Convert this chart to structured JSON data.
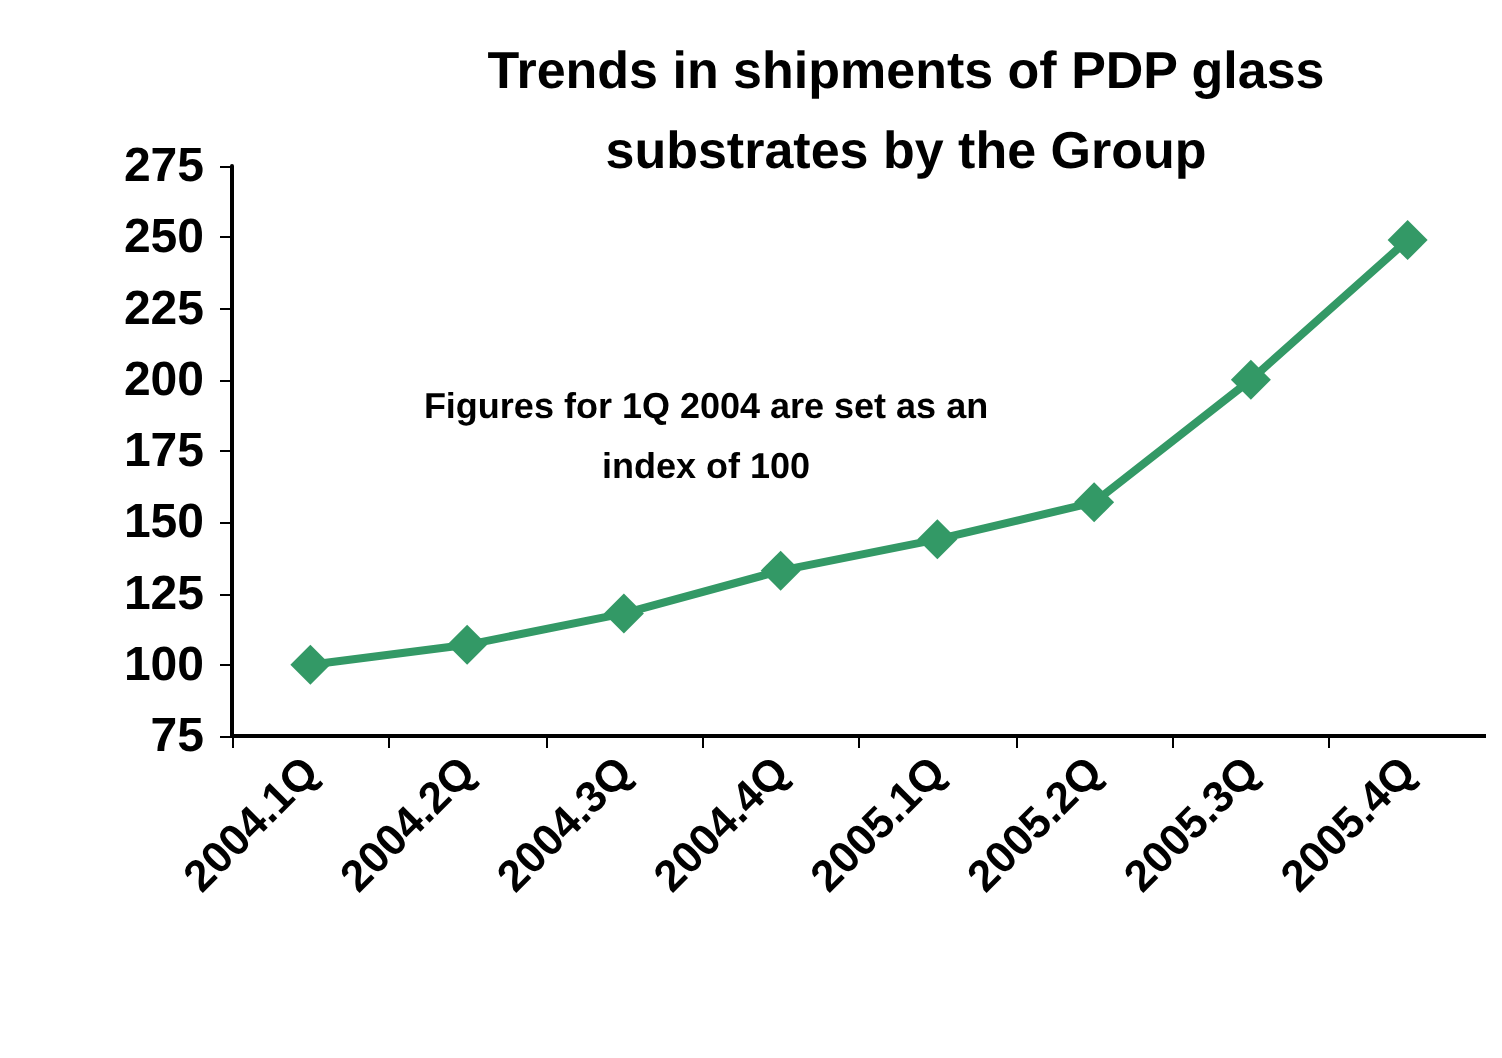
{
  "chart_data": {
    "type": "line",
    "title": "Trends in shipments of PDP glass\nsubstrates by the Group",
    "annotations": [
      "Figures for 1Q 2004 are set as an\nindex of 100"
    ],
    "categories": [
      "2004.1Q",
      "2004.2Q",
      "2004.3Q",
      "2004.4Q",
      "2005.1Q",
      "2005.2Q",
      "2005.3Q",
      "2005.4Q"
    ],
    "series": [
      {
        "color": "#339966",
        "values": [
          100,
          107,
          118,
          133,
          144,
          157,
          200,
          249
        ]
      }
    ],
    "ylim": [
      75,
      275
    ],
    "yticks": [
      75,
      100,
      125,
      150,
      175,
      200,
      225,
      250,
      275
    ],
    "marker": "diamond",
    "line_style": "solid"
  }
}
